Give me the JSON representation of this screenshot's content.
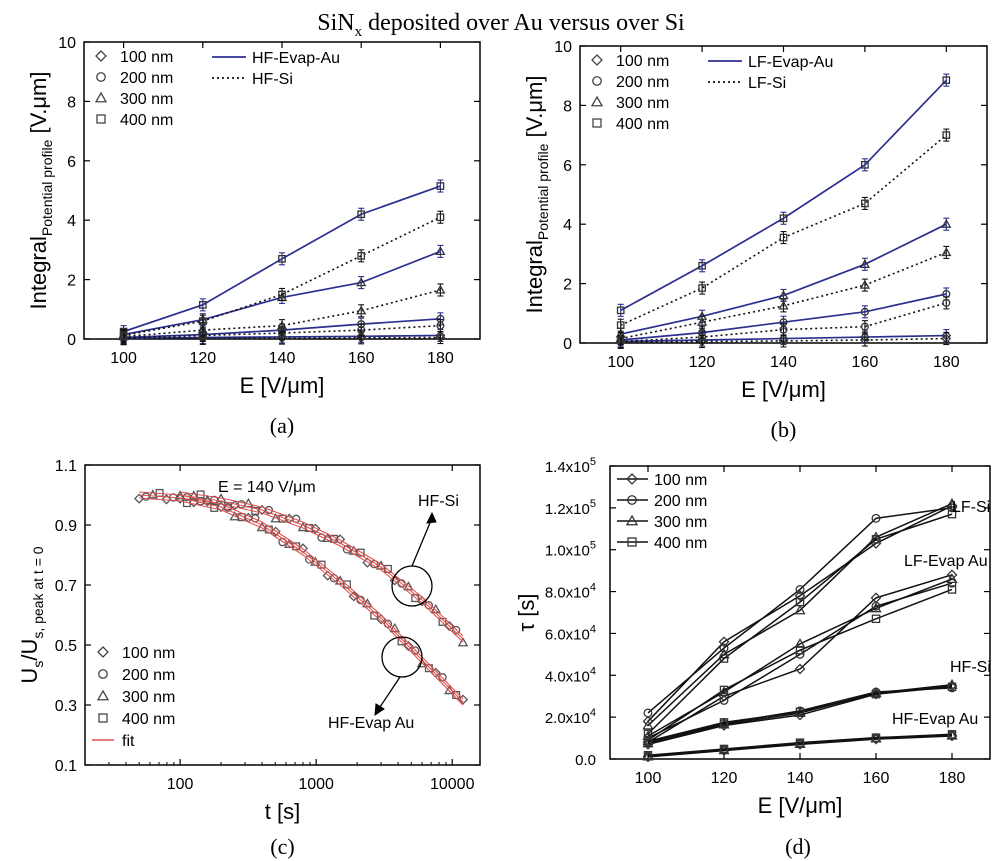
{
  "figure": {
    "title_main": "SiN",
    "title_sub": "x",
    "title_rest": " deposited over Au versus over Si"
  },
  "colors": {
    "au": "#2b2f8f",
    "axis": "#000000",
    "fit": "#e05050",
    "marker": "#444444"
  },
  "chart_data": [
    {
      "id": "a",
      "panel_label": "(a)",
      "type": "line",
      "x": [
        100,
        120,
        140,
        160,
        180
      ],
      "xlim": [
        90,
        190
      ],
      "ylim": [
        0,
        10
      ],
      "xticks": [
        100,
        120,
        140,
        160,
        180
      ],
      "yticks": [
        0,
        2,
        4,
        6,
        8,
        10
      ],
      "xlabel": "E  [V/μm]",
      "ylabel_main": "Integral",
      "ylabel_sub": "Potential profile",
      "ylabel_unit": " [V.μm]",
      "legend_markers": [
        {
          "marker": "diamond",
          "label": "100 nm"
        },
        {
          "marker": "circle",
          "label": "200 nm"
        },
        {
          "marker": "triangle",
          "label": "300 nm"
        },
        {
          "marker": "square",
          "label": "400 nm"
        }
      ],
      "legend_lines": [
        {
          "style": "solid",
          "label": "HF-Evap-Au"
        },
        {
          "style": "dotted",
          "label": "HF-Si"
        }
      ],
      "series": [
        {
          "group": "Au",
          "marker": "diamond",
          "values": [
            0.02,
            0.05,
            0.07,
            0.09,
            0.12
          ]
        },
        {
          "group": "Au",
          "marker": "circle",
          "values": [
            0.05,
            0.15,
            0.3,
            0.5,
            0.68
          ]
        },
        {
          "group": "Au",
          "marker": "triangle",
          "values": [
            0.15,
            0.65,
            1.4,
            1.9,
            2.95
          ]
        },
        {
          "group": "Au",
          "marker": "square",
          "values": [
            0.25,
            1.15,
            2.7,
            4.2,
            5.15
          ]
        },
        {
          "group": "Si",
          "marker": "diamond",
          "values": [
            0.01,
            0.02,
            0.03,
            0.04,
            0.05
          ]
        },
        {
          "group": "Si",
          "marker": "circle",
          "values": [
            0.03,
            0.12,
            0.2,
            0.3,
            0.45
          ]
        },
        {
          "group": "Si",
          "marker": "triangle",
          "values": [
            0.08,
            0.3,
            0.45,
            0.95,
            1.65
          ]
        },
        {
          "group": "Si",
          "marker": "square",
          "values": [
            0.12,
            0.6,
            1.5,
            2.8,
            4.1
          ]
        }
      ]
    },
    {
      "id": "b",
      "panel_label": "(b)",
      "type": "line",
      "x": [
        100,
        120,
        140,
        160,
        180
      ],
      "xlim": [
        90,
        190
      ],
      "ylim": [
        0,
        10
      ],
      "xticks": [
        100,
        120,
        140,
        160,
        180
      ],
      "yticks": [
        0,
        2,
        4,
        6,
        8,
        10
      ],
      "xlabel": "E  [V/μm]",
      "ylabel_main": "Integral",
      "ylabel_sub": "Potential profile",
      "ylabel_unit": " [V.μm]",
      "legend_markers": [
        {
          "marker": "diamond",
          "label": "100 nm"
        },
        {
          "marker": "circle",
          "label": "200 nm"
        },
        {
          "marker": "triangle",
          "label": "300 nm"
        },
        {
          "marker": "square",
          "label": "400 nm"
        }
      ],
      "legend_lines": [
        {
          "style": "solid",
          "label": "LF-Evap-Au"
        },
        {
          "style": "dotted",
          "label": "LF-Si"
        }
      ],
      "series": [
        {
          "group": "Au",
          "marker": "diamond",
          "values": [
            0.05,
            0.1,
            0.15,
            0.2,
            0.25
          ]
        },
        {
          "group": "Au",
          "marker": "circle",
          "values": [
            0.1,
            0.35,
            0.7,
            1.05,
            1.65
          ]
        },
        {
          "group": "Au",
          "marker": "triangle",
          "values": [
            0.3,
            0.9,
            1.6,
            2.65,
            4.0
          ]
        },
        {
          "group": "Au",
          "marker": "square",
          "values": [
            1.1,
            2.6,
            4.2,
            6.0,
            8.85
          ]
        },
        {
          "group": "Si",
          "marker": "diamond",
          "values": [
            0.02,
            0.05,
            0.07,
            0.1,
            0.15
          ]
        },
        {
          "group": "Si",
          "marker": "circle",
          "values": [
            0.05,
            0.2,
            0.45,
            0.55,
            1.35
          ]
        },
        {
          "group": "Si",
          "marker": "triangle",
          "values": [
            0.15,
            0.7,
            1.25,
            1.95,
            3.05
          ]
        },
        {
          "group": "Si",
          "marker": "square",
          "values": [
            0.6,
            1.85,
            3.55,
            4.7,
            7.0
          ]
        }
      ]
    },
    {
      "id": "c",
      "panel_label": "(c)",
      "type": "scatter",
      "xscale": "log",
      "xlim": [
        20,
        16000
      ],
      "ylim": [
        0.1,
        1.1
      ],
      "xticks": [
        100,
        1000,
        10000
      ],
      "xticklabels": [
        "100",
        "1000",
        "10000"
      ],
      "yticks": [
        0.1,
        0.3,
        0.5,
        0.7,
        0.9,
        1.1
      ],
      "yticklabels": [
        "0.1",
        "0.3",
        "0.5",
        "0.7",
        "0.9",
        "1.1"
      ],
      "xlabel": "t  [s]",
      "ylabel_a": "U",
      "ylabel_a_sub": "s",
      "ylabel_b": "/U",
      "ylabel_b_sub": "s, peak at t = 0",
      "annotation_field": "E = 140 V/μm",
      "annotation_hfsi": "HF-Si",
      "annotation_hfau": "HF-Evap Au",
      "legend_markers": [
        {
          "marker": "diamond",
          "label": "100 nm"
        },
        {
          "marker": "circle",
          "label": "200 nm"
        },
        {
          "marker": "triangle",
          "label": "300 nm"
        },
        {
          "marker": "square",
          "label": "400 nm"
        },
        {
          "marker": "fitline",
          "label": "fit"
        }
      ],
      "curves": [
        {
          "name": "HF-Si",
          "t": [
            100,
            200,
            400,
            800,
            1500,
            3000,
            6000,
            12000
          ],
          "u": [
            1.0,
            0.98,
            0.95,
            0.9,
            0.84,
            0.76,
            0.65,
            0.52
          ]
        },
        {
          "name": "HF-Evap Au",
          "t": [
            50,
            100,
            200,
            400,
            800,
            1500,
            3000,
            6000,
            12000
          ],
          "u": [
            1.0,
            0.99,
            0.96,
            0.9,
            0.81,
            0.71,
            0.59,
            0.45,
            0.31
          ]
        }
      ]
    },
    {
      "id": "d",
      "panel_label": "(d)",
      "type": "line",
      "x": [
        100,
        120,
        140,
        160,
        180
      ],
      "xlim": [
        90,
        190
      ],
      "ylim": [
        0,
        140000
      ],
      "xticks": [
        100,
        120,
        140,
        160,
        180
      ],
      "yticks": [
        0,
        20000,
        40000,
        60000,
        80000,
        100000,
        120000,
        140000
      ],
      "yticklabels": [
        {
          "m": "0.0",
          "e": ""
        },
        {
          "m": "2.0x10",
          "e": "4"
        },
        {
          "m": "4.0x10",
          "e": "4"
        },
        {
          "m": "6.0x10",
          "e": "4"
        },
        {
          "m": "8.0x10",
          "e": "4"
        },
        {
          "m": "1.0x10",
          "e": "5"
        },
        {
          "m": "1.2x10",
          "e": "5"
        },
        {
          "m": "1.4x10",
          "e": "5"
        }
      ],
      "xlabel": "E  [V/μm]",
      "ylabel": "τ [s]",
      "legend_markers": [
        {
          "marker": "diamond",
          "label": "100 nm"
        },
        {
          "marker": "circle",
          "label": "200 nm"
        },
        {
          "marker": "triangle",
          "label": "300 nm"
        },
        {
          "marker": "square",
          "label": "400 nm"
        }
      ],
      "group_labels": [
        "LF-Si",
        "LF-Evap Au",
        "HF-Si",
        "HF-Evap Au"
      ],
      "groups": [
        {
          "name": "LF-Si",
          "series": [
            {
              "marker": "diamond",
              "values": [
                18000,
                56000,
                78000,
                103000,
                121000
              ]
            },
            {
              "marker": "circle",
              "values": [
                22000,
                53000,
                81000,
                115000,
                120000
              ]
            },
            {
              "marker": "triangle",
              "values": [
                16000,
                50000,
                71000,
                106000,
                122000
              ]
            },
            {
              "marker": "square",
              "values": [
                12000,
                48000,
                75000,
                105000,
                117000
              ]
            }
          ]
        },
        {
          "name": "LF-Evap Au",
          "series": [
            {
              "marker": "diamond",
              "values": [
                8000,
                30000,
                43000,
                77000,
                88000
              ]
            },
            {
              "marker": "circle",
              "values": [
                10000,
                28000,
                50000,
                73000,
                84000
              ]
            },
            {
              "marker": "triangle",
              "values": [
                11000,
                32000,
                55000,
                72000,
                86000
              ]
            },
            {
              "marker": "square",
              "values": [
                9000,
                33000,
                52000,
                67000,
                81000
              ]
            }
          ]
        },
        {
          "name": "HF-Si",
          "series": [
            {
              "marker": "diamond",
              "values": [
                7000,
                16000,
                21000,
                31000,
                35000
              ]
            },
            {
              "marker": "circle",
              "values": [
                8000,
                17000,
                23000,
                32000,
                34000
              ]
            },
            {
              "marker": "triangle",
              "values": [
                7500,
                16500,
                22000,
                31500,
                35500
              ]
            },
            {
              "marker": "square",
              "values": [
                8500,
                17500,
                22500,
                31000,
                34500
              ]
            }
          ]
        },
        {
          "name": "HF-Evap Au",
          "series": [
            {
              "marker": "diamond",
              "values": [
                1000,
                4000,
                7000,
                9500,
                11000
              ]
            },
            {
              "marker": "circle",
              "values": [
                1500,
                4500,
                7500,
                10000,
                11500
              ]
            },
            {
              "marker": "triangle",
              "values": [
                1200,
                4200,
                7200,
                9800,
                11200
              ]
            },
            {
              "marker": "square",
              "values": [
                1800,
                4800,
                7800,
                10200,
                11800
              ]
            }
          ]
        }
      ]
    }
  ]
}
